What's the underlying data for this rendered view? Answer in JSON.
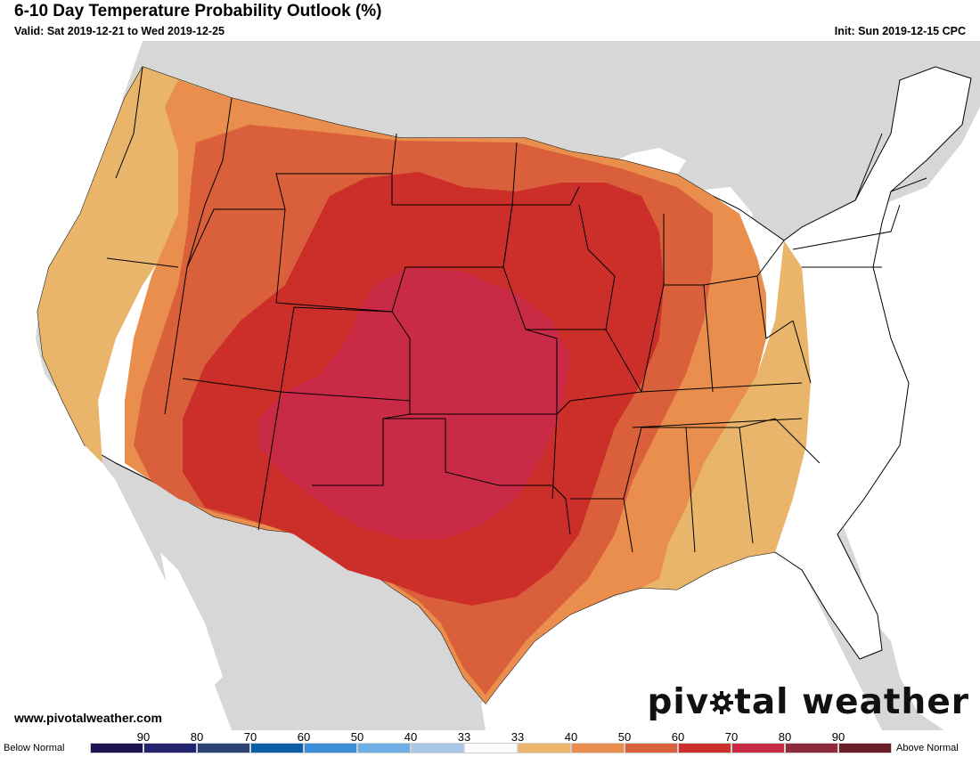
{
  "header": {
    "title": "6-10 Day Temperature Probability Outlook (%)",
    "valid": "Valid: Sat 2019-12-21 to Wed 2019-12-25",
    "init": "Init: Sun 2019-12-15 CPC"
  },
  "footer": {
    "website": "www.pivotalweather.com",
    "brand_left": "piv",
    "brand_right": "tal weather"
  },
  "legend": {
    "below_label": "Below Normal",
    "above_label": "Above Normal",
    "ticks": [
      "90",
      "80",
      "70",
      "60",
      "50",
      "40",
      "33",
      "33",
      "40",
      "50",
      "60",
      "70",
      "80",
      "90"
    ],
    "colors": [
      "#1c1552",
      "#24246e",
      "#2e4478",
      "#0a5fa8",
      "#3a8fd8",
      "#6fb0e6",
      "#a9c8ea",
      "#ffffff",
      "#e8b56a",
      "#e98e4d",
      "#d9603b",
      "#cc2f2a",
      "#c92a45",
      "#8e2c3a",
      "#6a1f2a"
    ]
  },
  "map": {
    "background_color": "#d7d7d7",
    "ocean_color": "#ffffff",
    "regions": [
      {
        "category": "Above Normal 40-50%",
        "color": "#e8b56a"
      },
      {
        "category": "Above Normal 50-60%",
        "color": "#e98e4d"
      },
      {
        "category": "Above Normal 60-70%",
        "color": "#d9603b"
      },
      {
        "category": "Above Normal 70-80%",
        "color": "#cc2f2a"
      },
      {
        "category": "Above Normal 80-90%",
        "color": "#c92a45"
      }
    ]
  }
}
